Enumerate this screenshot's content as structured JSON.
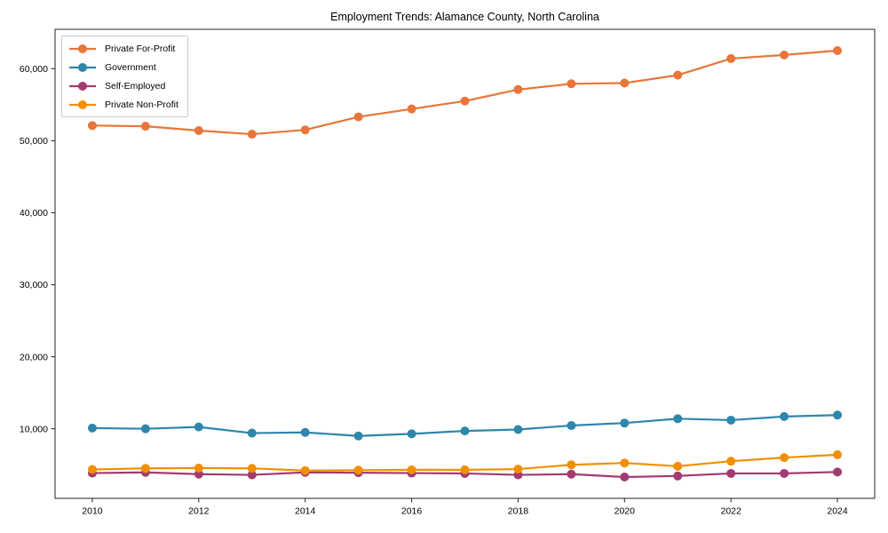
{
  "title": "Employment Trends: Alamance County, North Carolina",
  "chart_data": {
    "type": "line",
    "x": [
      2010,
      2011,
      2012,
      2013,
      2014,
      2015,
      2016,
      2017,
      2018,
      2019,
      2020,
      2021,
      2022,
      2023,
      2024
    ],
    "series": [
      {
        "name": "Private For-Profit",
        "color": "#e8763a",
        "values": [
          52100,
          52000,
          51400,
          50900,
          51500,
          53300,
          54400,
          55500,
          57100,
          57900,
          58000,
          59100,
          61400,
          61900,
          62500
        ]
      },
      {
        "name": "Government",
        "color": "#2e86ab",
        "values": [
          10100,
          10000,
          10250,
          9400,
          9500,
          9000,
          9300,
          9700,
          9900,
          10450,
          10800,
          11400,
          11200,
          11700,
          11900
        ]
      },
      {
        "name": "Self-Employed",
        "color": "#a23b72",
        "values": [
          3850,
          3950,
          3700,
          3600,
          3950,
          3900,
          3850,
          3800,
          3600,
          3700,
          3300,
          3450,
          3800,
          3800,
          4000
        ]
      },
      {
        "name": "Private Non-Profit",
        "color": "#f18f01",
        "values": [
          4350,
          4500,
          4550,
          4500,
          4200,
          4250,
          4300,
          4300,
          4400,
          5000,
          5250,
          4800,
          5500,
          6000,
          6400
        ]
      }
    ],
    "xticks": {
      "values": [
        2010,
        2012,
        2014,
        2016,
        2018,
        2020,
        2022,
        2024
      ],
      "labels": [
        "2010",
        "2012",
        "2014",
        "2016",
        "2018",
        "2020",
        "2022",
        "2024"
      ]
    },
    "yticks": {
      "values": [
        10000,
        20000,
        30000,
        40000,
        50000,
        60000
      ],
      "labels": [
        "10,000",
        "20,000",
        "30,000",
        "40,000",
        "50,000",
        "60,000"
      ]
    },
    "xlim": [
      2009.3,
      2024.7
    ],
    "ylim": [
      340,
      65460
    ],
    "grid": false,
    "legend_position": "upper left"
  }
}
